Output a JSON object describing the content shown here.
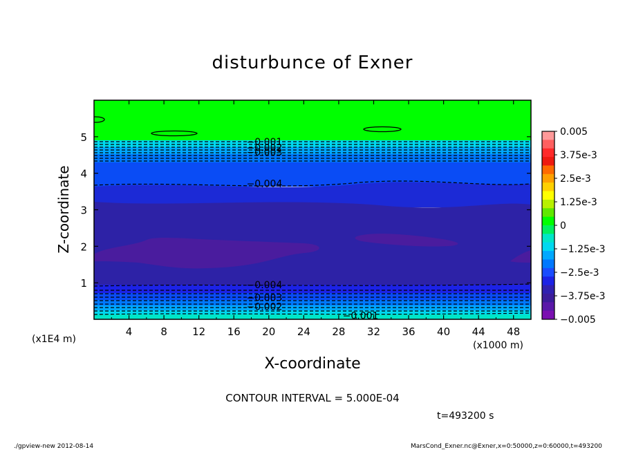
{
  "chart_data": {
    "type": "heatmap",
    "title": "disturbunce of Exner",
    "xlabel": "X-coordinate",
    "ylabel": "Z-coordinate",
    "x_unit": "(x1000 m)",
    "y_unit": "(x1E4 m)",
    "xlim": [
      0,
      50
    ],
    "ylim": [
      0,
      6
    ],
    "x_ticks": [
      "4",
      "8",
      "12",
      "16",
      "20",
      "24",
      "28",
      "32",
      "36",
      "40",
      "44",
      "48"
    ],
    "x_tick_values": [
      4,
      8,
      12,
      16,
      20,
      24,
      28,
      32,
      36,
      40,
      44,
      48
    ],
    "y_ticks": [
      "1",
      "2",
      "3",
      "4",
      "5"
    ],
    "y_tick_values": [
      1,
      2,
      3,
      4,
      5
    ],
    "value_range": [
      -0.005,
      0.005
    ],
    "colorbar_labels": [
      "0.005",
      "3.75e-3",
      "2.5e-3",
      "1.25e-3",
      "0",
      "−1.25e-3",
      "−2.5e-3",
      "−3.75e-3",
      "−0.005"
    ],
    "colorbar_label_values": [
      0.005,
      0.00375,
      0.0025,
      0.00125,
      0,
      -0.00125,
      -0.0025,
      -0.00375,
      -0.005
    ],
    "colorbar_colors": [
      "#ff9999",
      "#ff6060",
      "#ff2a2a",
      "#ee1a10",
      "#ff6a00",
      "#ffa000",
      "#ffd000",
      "#ffff00",
      "#b8f000",
      "#60e800",
      "#00ff00",
      "#00f060",
      "#00e6c8",
      "#00d8f0",
      "#00a8ff",
      "#0078ff",
      "#1a4cff",
      "#1c22e6",
      "#3020b0",
      "#3c1c9a",
      "#5a18a8",
      "#7a10b0"
    ],
    "levels": [
      {
        "z": 4.86,
        "label": "−0.001"
      },
      {
        "z": 4.7,
        "label": "−0.002"
      },
      {
        "z": 4.58,
        "label": "−0.003"
      },
      {
        "z": 3.72,
        "label": "−0.004"
      },
      {
        "z": 0.95,
        "label": "−0.004"
      },
      {
        "z": 0.6,
        "label": "−0.003"
      },
      {
        "z": 0.35,
        "label": "−0.002"
      },
      {
        "z": 0.1,
        "label": "−0.001"
      }
    ],
    "contour_interval": "CONTOUR INTERVAL = 5.000E-04"
  },
  "time": "t=493200  s",
  "footer": {
    "left": "./gpview-new   2012-08-14",
    "right": "MarsCond_Exner.nc@Exner,x=0:50000,z=0:60000,t=493200"
  },
  "colors": {
    "green": "#00ff00",
    "blue_bright": "#0a4cf5",
    "blue_mid": "#1c2ad6",
    "blue_deep": "#2d22a6",
    "purple": "#4a1c9e",
    "cyan": "#00dfe8"
  }
}
